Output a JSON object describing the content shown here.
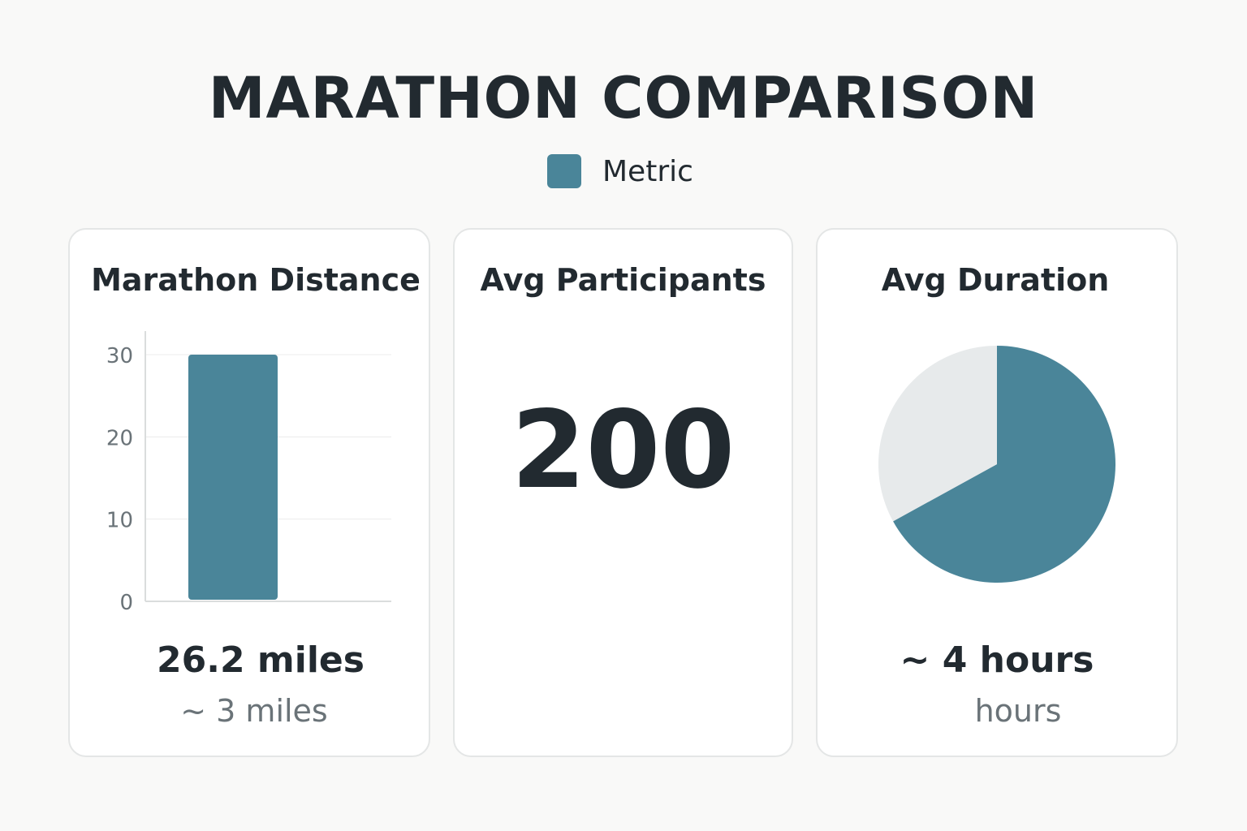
{
  "title": "MARATHON COMPARISON",
  "legend": {
    "label": "Metric",
    "color": "#4a8599"
  },
  "cards": {
    "distance": {
      "title": "Marathon Distance",
      "value": "26.2 miles",
      "subtext": "~ 3 miles"
    },
    "participants": {
      "title": "Avg Participants",
      "value": "200"
    },
    "duration": {
      "title": "Avg Duration",
      "value": "~ 4 hours",
      "subtext": "hours"
    }
  },
  "chart_data": [
    {
      "type": "bar",
      "categories": [
        ""
      ],
      "values": [
        30
      ],
      "yticks": [
        0,
        10,
        20,
        30
      ],
      "ylim": [
        0,
        30
      ],
      "grid": true,
      "color": "#4a8599"
    },
    {
      "type": "pie",
      "values": [
        0.67,
        0.33
      ],
      "colors": [
        "#4a8599",
        "#e7eaeb"
      ]
    }
  ]
}
